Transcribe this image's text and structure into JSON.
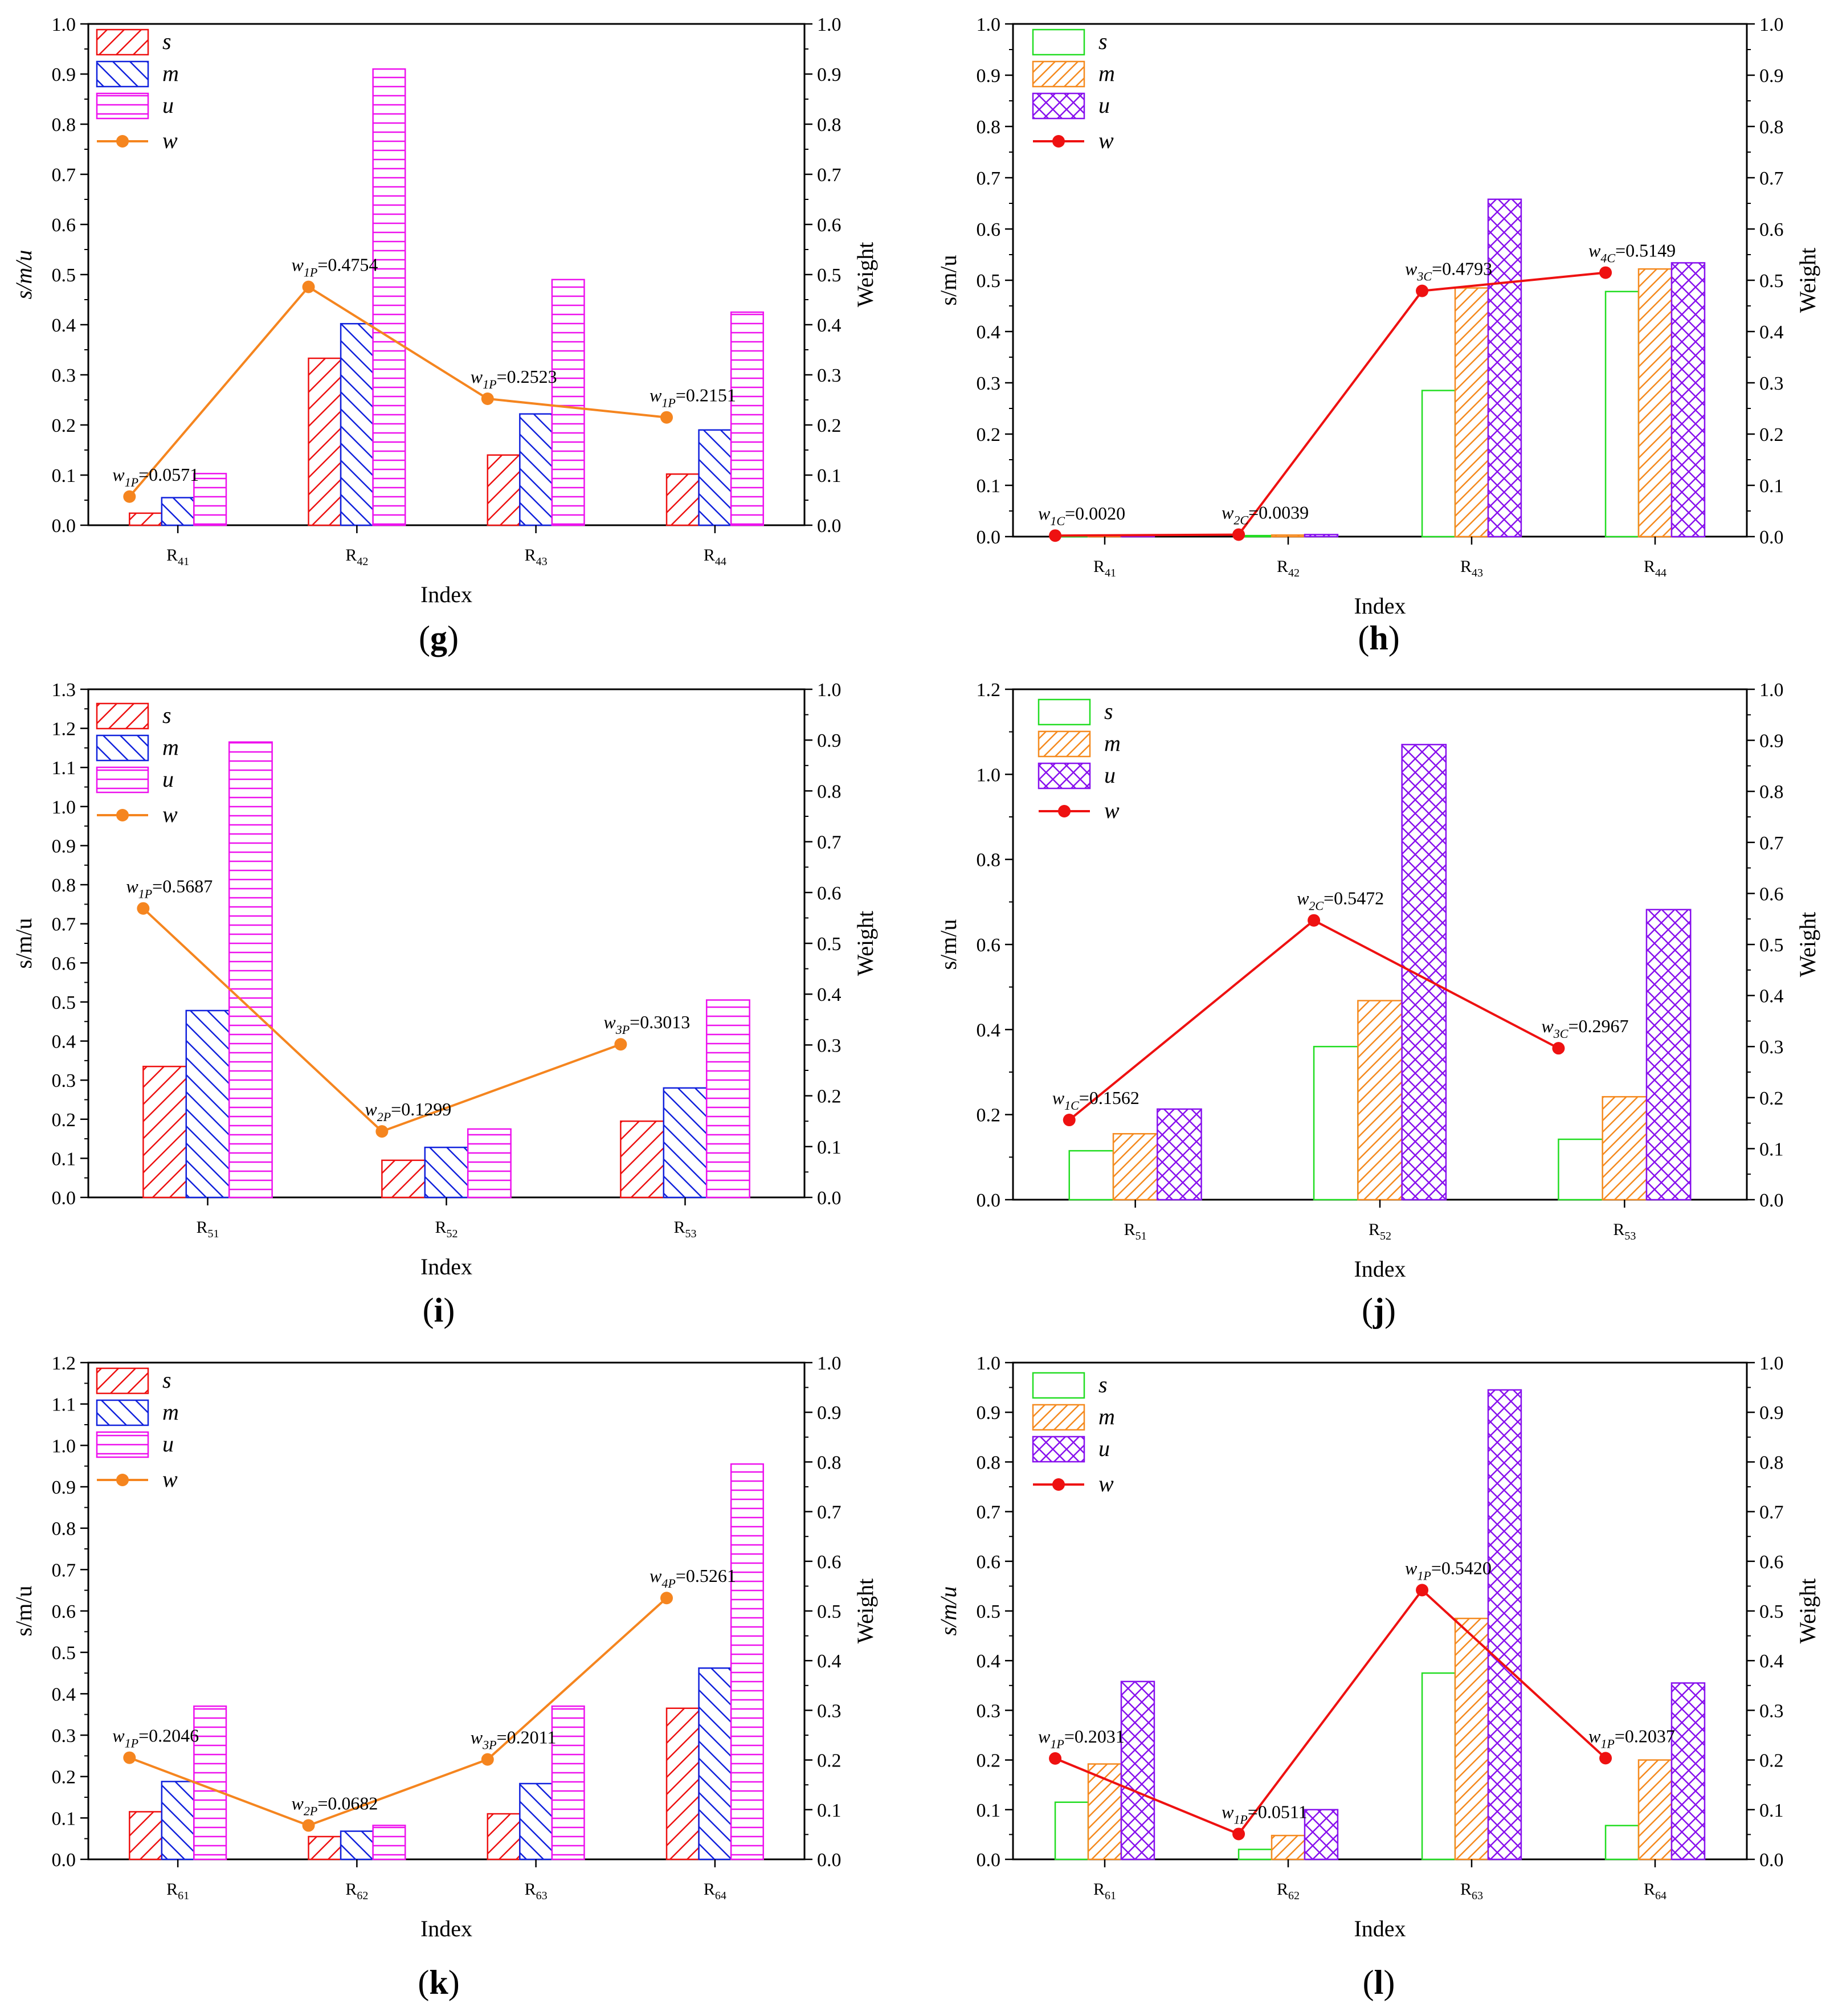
{
  "chart_data": [
    {
      "id": "g",
      "panel_label": "g",
      "style": "A",
      "type": "bar+line",
      "categories": [
        "R41",
        "R42",
        "R43",
        "R44"
      ],
      "series": [
        {
          "name": "s",
          "values": [
            0.024,
            0.333,
            0.14,
            0.102
          ]
        },
        {
          "name": "m",
          "values": [
            0.055,
            0.402,
            0.222,
            0.19
          ]
        },
        {
          "name": "u",
          "values": [
            0.103,
            0.91,
            0.49,
            0.425
          ]
        }
      ],
      "weight": {
        "name": "w",
        "values": [
          0.0571,
          0.4754,
          0.2523,
          0.2151
        ],
        "labels": [
          {
            "sub": "1P",
            "value": "=0.0571"
          },
          {
            "sub": "1P",
            "value": "=0.4754"
          },
          {
            "sub": "1P",
            "value": "=0.2523"
          },
          {
            "sub": "1P",
            "value": "=0.2151"
          }
        ]
      },
      "ylabel": "s/m/u",
      "ylabel_italic": true,
      "y2label": "Weight",
      "xlabel": "Index",
      "ylim": [
        0,
        1.0
      ],
      "ystep": 0.1,
      "yticks": [
        "0.0",
        "0.1",
        "0.2",
        "0.3",
        "0.4",
        "0.5",
        "0.6",
        "0.7",
        "0.8",
        "0.9",
        "1.0"
      ],
      "y2lim": [
        0,
        1.0
      ],
      "y2ticks": [
        "0.0",
        "0.1",
        "0.2",
        "0.3",
        "0.4",
        "0.5",
        "0.6",
        "0.7",
        "0.8",
        "0.9",
        "1.0"
      ]
    },
    {
      "id": "h",
      "panel_label": "h",
      "style": "B",
      "type": "bar+line",
      "categories": [
        "R41",
        "R42",
        "R43",
        "R44"
      ],
      "series": [
        {
          "name": "s",
          "values": [
            0.001,
            0.002,
            0.285,
            0.478
          ]
        },
        {
          "name": "m",
          "values": [
            0.002,
            0.003,
            0.485,
            0.522
          ]
        },
        {
          "name": "u",
          "values": [
            0.003,
            0.004,
            0.658,
            0.534
          ]
        }
      ],
      "weight": {
        "name": "w",
        "values": [
          0.002,
          0.0039,
          0.4793,
          0.5149
        ],
        "labels": [
          {
            "sub": "1C",
            "value": "=0.0020"
          },
          {
            "sub": "2C",
            "value": "=0.0039"
          },
          {
            "sub": "3C",
            "value": "=0.4793"
          },
          {
            "sub": "4C",
            "value": "=0.5149"
          }
        ]
      },
      "ylabel": "s/m/u",
      "ylabel_italic": false,
      "y2label": "Weight",
      "xlabel": "Index",
      "ylim": [
        0,
        1.0
      ],
      "yticks": [
        "0.0",
        "0.1",
        "0.2",
        "0.3",
        "0.4",
        "0.5",
        "0.6",
        "0.7",
        "0.8",
        "0.9",
        "1.0"
      ],
      "y2lim": [
        0,
        1.0
      ],
      "y2ticks": [
        "0.0",
        "0.1",
        "0.2",
        "0.3",
        "0.4",
        "0.5",
        "0.6",
        "0.7",
        "0.8",
        "0.9",
        "1.0"
      ]
    },
    {
      "id": "i",
      "panel_label": "i",
      "style": "A",
      "type": "bar+line",
      "categories": [
        "R51",
        "R52",
        "R53"
      ],
      "series": [
        {
          "name": "s",
          "values": [
            0.335,
            0.095,
            0.195
          ]
        },
        {
          "name": "m",
          "values": [
            0.478,
            0.128,
            0.28
          ]
        },
        {
          "name": "u",
          "values": [
            1.165,
            0.175,
            0.505
          ]
        }
      ],
      "weight": {
        "name": "w",
        "values": [
          0.5687,
          0.1299,
          0.3013
        ],
        "labels": [
          {
            "sub": "1P",
            "value": "=0.5687"
          },
          {
            "sub": "2P",
            "value": "=0.1299"
          },
          {
            "sub": "3P",
            "value": "=0.3013"
          }
        ]
      },
      "ylabel": "s/m/u",
      "ylabel_italic": false,
      "y2label": "Weight",
      "xlabel": "Index",
      "ylim": [
        0,
        1.3
      ],
      "yticks": [
        "0.0",
        "0.1",
        "0.2",
        "0.3",
        "0.4",
        "0.5",
        "0.6",
        "0.7",
        "0.8",
        "0.9",
        "1.0",
        "1.1",
        "1.2",
        "1.3"
      ],
      "y2lim": [
        0,
        1.0
      ],
      "y2ticks": [
        "0.0",
        "0.1",
        "0.2",
        "0.3",
        "0.4",
        "0.5",
        "0.6",
        "0.7",
        "0.8",
        "0.9",
        "1.0"
      ]
    },
    {
      "id": "j",
      "panel_label": "j",
      "style": "B",
      "type": "bar+line",
      "categories": [
        "R51",
        "R52",
        "R53"
      ],
      "series": [
        {
          "name": "s",
          "values": [
            0.115,
            0.36,
            0.142
          ]
        },
        {
          "name": "m",
          "values": [
            0.155,
            0.468,
            0.242
          ]
        },
        {
          "name": "u",
          "values": [
            0.213,
            1.07,
            0.682
          ]
        }
      ],
      "weight": {
        "name": "w",
        "values": [
          0.1562,
          0.5472,
          0.2967
        ],
        "labels": [
          {
            "sub": "1C",
            "value": "=0.1562"
          },
          {
            "sub": "2C",
            "value": "=0.5472"
          },
          {
            "sub": "3C",
            "value": "=0.2967"
          }
        ]
      },
      "ylabel": "s/m/u",
      "ylabel_italic": false,
      "y2label": "Weight",
      "xlabel": "Index",
      "ylim": [
        0,
        1.2
      ],
      "yticks": [
        "0.0",
        "0.2",
        "0.4",
        "0.6",
        "0.8",
        "1.0",
        "1.2"
      ],
      "y2lim": [
        0,
        1.0
      ],
      "y2ticks": [
        "0.0",
        "0.1",
        "0.2",
        "0.3",
        "0.4",
        "0.5",
        "0.6",
        "0.7",
        "0.8",
        "0.9",
        "1.0"
      ]
    },
    {
      "id": "k",
      "panel_label": "k",
      "style": "A",
      "type": "bar+line",
      "categories": [
        "R61",
        "R62",
        "R63",
        "R64"
      ],
      "series": [
        {
          "name": "s",
          "values": [
            0.115,
            0.055,
            0.11,
            0.365
          ]
        },
        {
          "name": "m",
          "values": [
            0.188,
            0.068,
            0.183,
            0.462
          ]
        },
        {
          "name": "u",
          "values": [
            0.37,
            0.082,
            0.37,
            0.955
          ]
        }
      ],
      "weight": {
        "name": "w",
        "values": [
          0.2046,
          0.0682,
          0.2011,
          0.5261
        ],
        "labels": [
          {
            "sub": "1P",
            "value": "=0.2046"
          },
          {
            "sub": "2P",
            "value": "=0.0682"
          },
          {
            "sub": "3P",
            "value": "=0.2011"
          },
          {
            "sub": "4P",
            "value": "=0.5261"
          }
        ]
      },
      "ylabel": "s/m/u",
      "ylabel_italic": false,
      "y2label": "Weight",
      "xlabel": "Index",
      "ylim": [
        0,
        1.2
      ],
      "yticks": [
        "0.0",
        "0.1",
        "0.2",
        "0.3",
        "0.4",
        "0.5",
        "0.6",
        "0.7",
        "0.8",
        "0.9",
        "1.0",
        "1.1",
        "1.2"
      ],
      "y2lim": [
        0,
        1.0
      ],
      "y2ticks": [
        "0.0",
        "0.1",
        "0.2",
        "0.3",
        "0.4",
        "0.5",
        "0.6",
        "0.7",
        "0.8",
        "0.9",
        "1.0"
      ]
    },
    {
      "id": "l",
      "panel_label": "l",
      "style": "B",
      "type": "bar+line",
      "categories": [
        "R61",
        "R62",
        "R63",
        "R64"
      ],
      "series": [
        {
          "name": "s",
          "values": [
            0.115,
            0.02,
            0.375,
            0.068
          ]
        },
        {
          "name": "m",
          "values": [
            0.192,
            0.048,
            0.485,
            0.2
          ]
        },
        {
          "name": "u",
          "values": [
            0.358,
            0.1,
            0.945,
            0.355
          ]
        }
      ],
      "weight": {
        "name": "w",
        "values": [
          0.2031,
          0.0511,
          0.542,
          0.2037
        ],
        "labels": [
          {
            "sub": "1P",
            "value": "=0.2031"
          },
          {
            "sub": "1P",
            "value": "=0.0511"
          },
          {
            "sub": "1P",
            "value": "=0.5420"
          },
          {
            "sub": "1P",
            "value": "=0.2037"
          }
        ]
      },
      "ylabel": "s/m/u",
      "ylabel_italic": true,
      "y2label": "Weight",
      "xlabel": "Index",
      "ylim": [
        0,
        1.0
      ],
      "yticks": [
        "0.0",
        "0.1",
        "0.2",
        "0.3",
        "0.4",
        "0.5",
        "0.6",
        "0.7",
        "0.8",
        "0.9",
        "1.0"
      ],
      "y2lim": [
        0,
        1.0
      ],
      "y2ticks": [
        "0.0",
        "0.1",
        "0.2",
        "0.3",
        "0.4",
        "0.5",
        "0.6",
        "0.7",
        "0.8",
        "0.9",
        "1.0"
      ]
    }
  ],
  "colors": {
    "A": {
      "s": "#ee1111",
      "m": "#1122dd",
      "u": "#ee11ee",
      "w": "#f5851f"
    },
    "B": {
      "s": "#22dd22",
      "m": "#f58a1f",
      "u": "#8811ee",
      "w": "#ee1111"
    }
  }
}
